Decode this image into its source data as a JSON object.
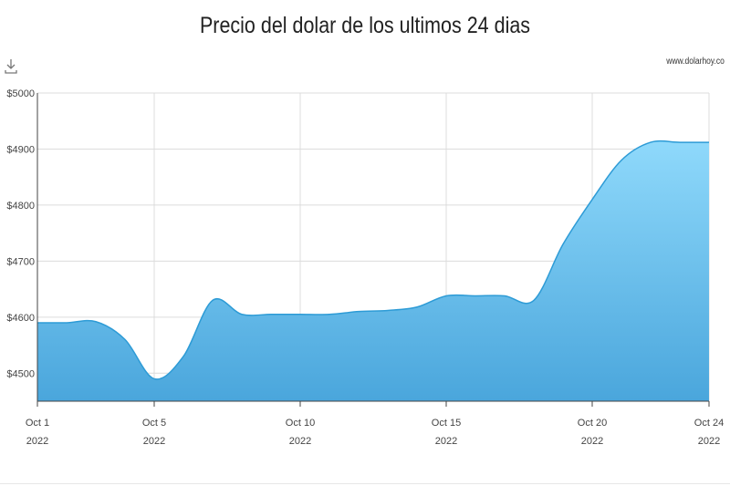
{
  "title": "Precio del dolar de los ultimos 24 dias",
  "source": "www.dolarhoy.co",
  "download_icon": "download-icon",
  "chart_data": {
    "type": "area",
    "x": [
      1,
      2,
      3,
      4,
      5,
      6,
      7,
      8,
      9,
      10,
      11,
      12,
      13,
      14,
      15,
      16,
      17,
      18,
      19,
      20,
      21,
      22,
      23,
      24
    ],
    "values": [
      4590,
      4590,
      4592,
      4560,
      4490,
      4530,
      4630,
      4605,
      4605,
      4605,
      4605,
      4610,
      4612,
      4618,
      4638,
      4638,
      4638,
      4630,
      4730,
      4810,
      4880,
      4912,
      4912,
      4912
    ],
    "ylim": [
      4450,
      5000
    ],
    "yticks": [
      {
        "value": 4500,
        "label": "$4500"
      },
      {
        "value": 4600,
        "label": "$4600"
      },
      {
        "value": 4700,
        "label": "$4700"
      },
      {
        "value": 4800,
        "label": "$4800"
      },
      {
        "value": 4900,
        "label": "$4900"
      },
      {
        "value": 5000,
        "label": "$5000"
      }
    ],
    "xticks": [
      {
        "x": 1,
        "label": "Oct 1",
        "year": "2022"
      },
      {
        "x": 5,
        "label": "Oct 5",
        "year": "2022"
      },
      {
        "x": 10,
        "label": "Oct 10",
        "year": "2022"
      },
      {
        "x": 15,
        "label": "Oct 15",
        "year": "2022"
      },
      {
        "x": 20,
        "label": "Oct 20",
        "year": "2022"
      },
      {
        "x": 24,
        "label": "Oct 24",
        "year": "2022"
      }
    ],
    "xlabel": "",
    "ylabel": "",
    "grid": true,
    "colors": {
      "fill_top": "#8fd9fb",
      "fill_bottom": "#4aa6dc",
      "line": "#2d9bd6",
      "grid": "#dcdcdc",
      "axis": "#444444"
    }
  }
}
